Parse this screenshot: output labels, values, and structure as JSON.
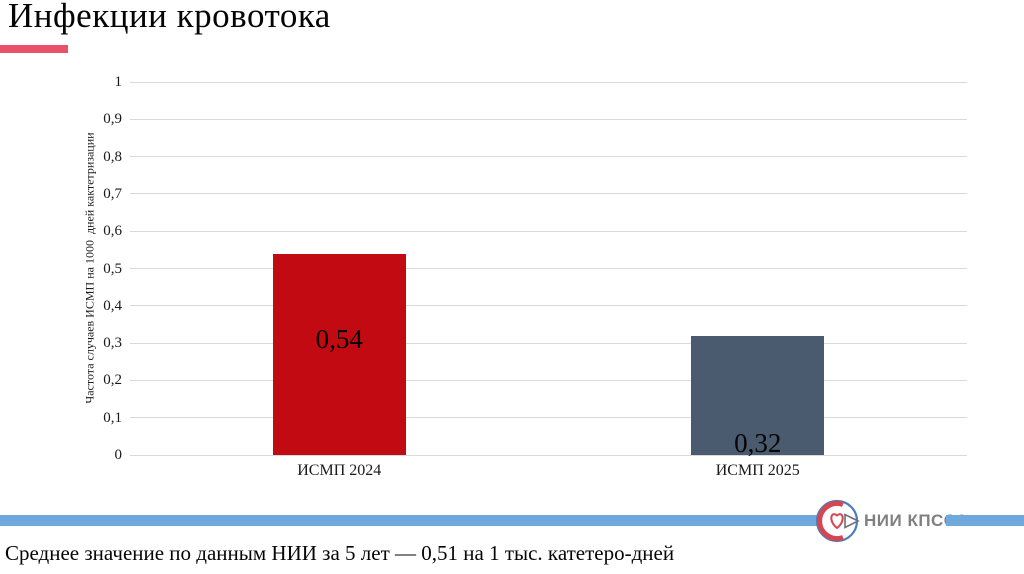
{
  "slide": {
    "title": "Инфекции кровотока",
    "footer_note": "Среднее значение по данным НИИ за 5 лет — 0,51 на 1 тыс. катетеро-дней",
    "logo_text": "НИИ КПССЗ"
  },
  "colors": {
    "title_underline": "#E8506B",
    "footer_bar": "#6FA9DC",
    "gridline": "#D9D9D9",
    "logo_text": "#808080",
    "logo_blue": "#4A7EBB",
    "logo_red": "#D64550"
  },
  "chart_data": {
    "type": "bar",
    "categories": [
      "ИСМП 2024",
      "ИСМП 2025"
    ],
    "values": [
      0.54,
      0.32
    ],
    "value_labels": [
      "0,54",
      "0,32"
    ],
    "value_label_positions": [
      "center",
      "inside-base"
    ],
    "series_colors": [
      "#C10A12",
      "#4A5A6F"
    ],
    "title": "Инфекции кровотока",
    "xlabel": "",
    "ylabel": "Частота случаев ИСМП на 1000  дней кактетризации",
    "ylim": [
      0,
      1
    ],
    "yticks": [
      {
        "value": 1.0,
        "label": "1"
      },
      {
        "value": 0.9,
        "label": "0,9"
      },
      {
        "value": 0.8,
        "label": "0,8"
      },
      {
        "value": 0.7,
        "label": "0,7"
      },
      {
        "value": 0.6,
        "label": "0,6"
      },
      {
        "value": 0.5,
        "label": "0,5"
      },
      {
        "value": 0.4,
        "label": "0,4"
      },
      {
        "value": 0.3,
        "label": "0,3"
      },
      {
        "value": 0.2,
        "label": "0,2"
      },
      {
        "value": 0.1,
        "label": "0,1"
      },
      {
        "value": 0.0,
        "label": "0"
      }
    ],
    "grid": true,
    "legend": "none"
  }
}
